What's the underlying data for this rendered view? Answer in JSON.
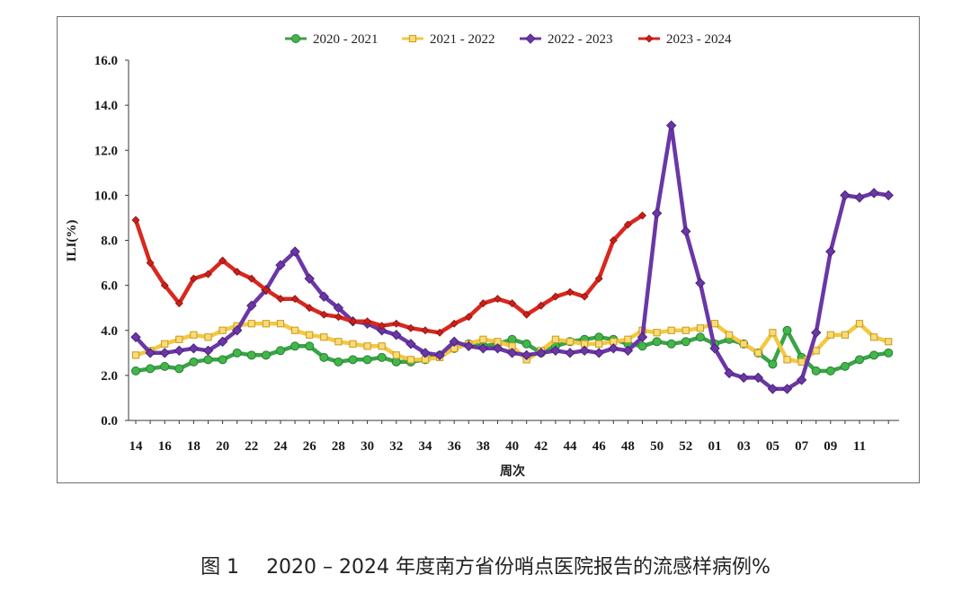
{
  "chart_data": {
    "type": "line",
    "x": [
      14,
      15,
      16,
      17,
      18,
      19,
      20,
      21,
      22,
      23,
      24,
      25,
      26,
      27,
      28,
      29,
      30,
      31,
      32,
      33,
      34,
      35,
      36,
      37,
      38,
      39,
      40,
      41,
      42,
      43,
      44,
      45,
      46,
      47,
      48,
      49,
      50,
      51,
      52,
      53,
      1,
      2,
      3,
      4,
      5,
      6,
      7,
      8,
      9,
      10,
      11,
      12,
      13
    ],
    "x_tick_labels": [
      "14",
      "16",
      "18",
      "20",
      "22",
      "24",
      "26",
      "28",
      "30",
      "32",
      "34",
      "36",
      "38",
      "40",
      "42",
      "44",
      "46",
      "48",
      "50",
      "52",
      "01",
      "03",
      "05",
      "07",
      "09",
      "11"
    ],
    "y_tick_labels": [
      "0.0",
      "2.0",
      "4.0",
      "6.0",
      "8.0",
      "10.0",
      "12.0",
      "14.0",
      "16.0"
    ],
    "ylim": [
      0,
      16
    ],
    "xlabel": "周次",
    "ylabel": "ILI(%)",
    "grid": false,
    "legend_position": "top-center",
    "series": [
      {
        "name": "2020 - 2021",
        "marker": "circle",
        "color": "#3aa348",
        "marker_fill": "#43b649",
        "marker_stroke": "#2a7f36",
        "values": [
          2.2,
          2.3,
          2.4,
          2.3,
          2.6,
          2.7,
          2.7,
          3.0,
          2.9,
          2.9,
          3.1,
          3.3,
          3.3,
          2.8,
          2.6,
          2.7,
          2.7,
          2.8,
          2.6,
          2.6,
          2.7,
          2.9,
          3.2,
          3.4,
          3.3,
          3.4,
          3.6,
          3.4,
          3.0,
          3.3,
          3.5,
          3.6,
          3.7,
          3.6,
          3.4,
          3.3,
          3.5,
          3.4,
          3.5,
          3.7,
          3.4,
          3.6,
          3.4,
          3.0,
          2.5,
          4.0,
          2.8,
          2.2,
          2.2,
          2.4,
          2.7,
          2.9,
          3.0
        ]
      },
      {
        "name": "2021 - 2022",
        "marker": "square",
        "color": "#f3c843",
        "marker_fill": "#f8dc78",
        "marker_stroke": "#c9991e",
        "values": [
          2.9,
          3.1,
          3.4,
          3.6,
          3.8,
          3.7,
          4.0,
          4.2,
          4.3,
          4.3,
          4.3,
          4.0,
          3.8,
          3.7,
          3.5,
          3.4,
          3.3,
          3.3,
          2.9,
          2.7,
          2.7,
          2.8,
          3.2,
          3.4,
          3.6,
          3.5,
          3.3,
          2.7,
          3.1,
          3.6,
          3.5,
          3.4,
          3.4,
          3.5,
          3.6,
          4.0,
          3.9,
          4.0,
          4.0,
          4.1,
          4.3,
          3.8,
          3.4,
          3.0,
          3.9,
          2.7,
          2.6,
          3.1,
          3.8,
          3.8,
          4.3,
          3.7,
          3.5
        ]
      },
      {
        "name": "2022 - 2023",
        "marker": "diamond",
        "color": "#6b37a7",
        "marker_fill": "#6b37a7",
        "marker_stroke": "#4a2378",
        "values": [
          3.7,
          3.0,
          3.0,
          3.1,
          3.2,
          3.1,
          3.5,
          4.0,
          5.1,
          5.8,
          6.9,
          7.5,
          6.3,
          5.5,
          5.0,
          4.4,
          4.3,
          4.0,
          3.8,
          3.4,
          3.0,
          2.9,
          3.5,
          3.3,
          3.2,
          3.2,
          3.0,
          2.9,
          3.0,
          3.1,
          3.0,
          3.1,
          3.0,
          3.2,
          3.1,
          3.7,
          9.2,
          13.1,
          8.4,
          6.1,
          3.2,
          2.1,
          1.9,
          1.9,
          1.4,
          1.4,
          1.8,
          3.9,
          7.5,
          10.0,
          9.9,
          10.1,
          10.0
        ]
      },
      {
        "name": "2023 - 2024",
        "marker": "diamond-small",
        "color": "#d8281f",
        "marker_fill": "#c9211a",
        "marker_stroke": "#9c1510",
        "values": [
          8.9,
          7.0,
          6.0,
          5.2,
          6.3,
          6.5,
          7.1,
          6.6,
          6.3,
          5.8,
          5.4,
          5.4,
          5.0,
          4.7,
          4.6,
          4.4,
          4.4,
          4.2,
          4.3,
          4.1,
          4.0,
          3.9,
          4.3,
          4.6,
          5.2,
          5.4,
          5.2,
          4.7,
          5.1,
          5.5,
          5.7,
          5.5,
          6.3,
          8.0,
          8.7,
          9.1,
          null,
          null,
          null,
          null,
          null,
          null,
          null,
          null,
          null,
          null,
          null,
          null,
          null,
          null,
          null,
          null,
          null
        ]
      }
    ]
  },
  "caption": {
    "label": "图 1",
    "text": "2020 – 2024 年度南方省份哨点医院报告的流感样病例%"
  }
}
